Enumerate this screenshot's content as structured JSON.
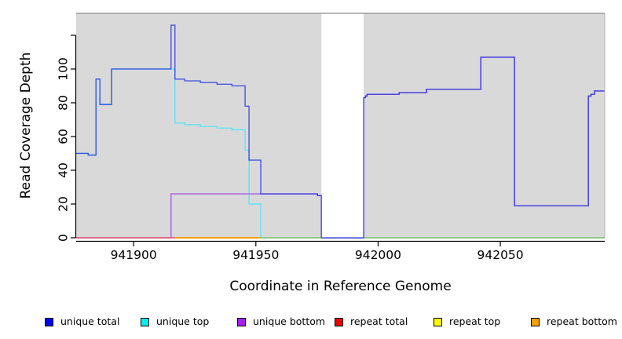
{
  "chart_data": {
    "type": "line",
    "subtype": "step",
    "xlabel": "Coordinate in Reference Genome",
    "ylabel": "Read Coverage Depth",
    "xlim": [
      941876.5,
      942092.7
    ],
    "ylim": [
      0,
      133
    ],
    "x_ticks": [
      941900,
      941950,
      942000,
      942050
    ],
    "x_tick_labels": [
      "941900",
      "941950",
      "942000",
      "942050"
    ],
    "y_ticks": [
      0,
      20,
      40,
      60,
      80,
      100,
      120
    ],
    "y_tick_labels": [
      "0",
      "20",
      "40",
      "60",
      "80",
      "100",
      ""
    ],
    "grid": "off",
    "plot_bg_color": "#d9d9d9",
    "gap_region": {
      "start": 941976.8,
      "end": 941994.1,
      "color": "#ffffff"
    },
    "series": [
      {
        "name": "repeat total",
        "color": "#ee2222",
        "opacity": 1,
        "points": [
          [
            941876.5,
            0
          ],
          [
            942092.7,
            0
          ]
        ]
      },
      {
        "name": "repeat top",
        "color": "#f0f000",
        "opacity": 1,
        "points": [
          [
            941876.5,
            0
          ],
          [
            942092.7,
            0
          ]
        ]
      },
      {
        "name": "repeat bottom",
        "color": "#ff9d00",
        "opacity": 1,
        "points": [
          [
            941876.5,
            0
          ],
          [
            942092.7,
            0
          ]
        ]
      },
      {
        "name": "unique top",
        "color": "#63e3f2",
        "opacity": 1,
        "points": [
          [
            941876.5,
            50
          ],
          [
            941881.4,
            50
          ],
          [
            941881.4,
            49
          ],
          [
            941884.6,
            49
          ],
          [
            941884.6,
            94
          ],
          [
            941886.2,
            94
          ],
          [
            941886.2,
            79
          ],
          [
            941891,
            79
          ],
          [
            941891,
            100
          ],
          [
            941916.9,
            100
          ],
          [
            941916.9,
            68
          ],
          [
            941920.9,
            68
          ],
          [
            941920.9,
            67
          ],
          [
            941927.3,
            67
          ],
          [
            941927.3,
            66
          ],
          [
            941934.1,
            66
          ],
          [
            941934.1,
            65
          ],
          [
            941940.2,
            65
          ],
          [
            941940.2,
            64
          ],
          [
            941945.6,
            64
          ],
          [
            941945.6,
            52
          ],
          [
            941947.2,
            52
          ],
          [
            941947.2,
            20
          ],
          [
            941952,
            20
          ],
          [
            941952,
            0
          ],
          [
            942092.7,
            0
          ]
        ]
      },
      {
        "name": "unique bottom",
        "color": "#a95ae8",
        "opacity": 1,
        "points": [
          [
            941876.5,
            0
          ],
          [
            941915.3,
            0
          ],
          [
            941915.3,
            26
          ],
          [
            941975.2,
            26
          ],
          [
            941975.2,
            25
          ],
          [
            941976.8,
            25
          ],
          [
            941976.8,
            0
          ],
          [
            941994.1,
            0
          ],
          [
            941994.1,
            83
          ],
          [
            941994.8,
            83
          ],
          [
            941994.8,
            84
          ],
          [
            941995.5,
            84
          ],
          [
            941995.5,
            85
          ],
          [
            942008.6,
            85
          ],
          [
            942008.6,
            86
          ],
          [
            942019.8,
            86
          ],
          [
            942019.8,
            88
          ],
          [
            942042,
            88
          ],
          [
            942042,
            107
          ],
          [
            942055.8,
            107
          ],
          [
            942055.8,
            19
          ],
          [
            942086,
            19
          ],
          [
            942086,
            84
          ],
          [
            942087.1,
            84
          ],
          [
            942087.1,
            85
          ],
          [
            942088.5,
            85
          ],
          [
            942088.5,
            87
          ],
          [
            942092.7,
            87
          ]
        ]
      },
      {
        "name": "unique total",
        "color": "#2335dd",
        "opacity": 0.8,
        "points": [
          [
            941876.5,
            50
          ],
          [
            941881.4,
            50
          ],
          [
            941881.4,
            49
          ],
          [
            941884.6,
            49
          ],
          [
            941884.6,
            94
          ],
          [
            941886.2,
            94
          ],
          [
            941886.2,
            79
          ],
          [
            941891,
            79
          ],
          [
            941891,
            100
          ],
          [
            941915.3,
            100
          ],
          [
            941915.3,
            126
          ],
          [
            941916.9,
            126
          ],
          [
            941916.9,
            94
          ],
          [
            941920.9,
            94
          ],
          [
            941920.9,
            93
          ],
          [
            941927.3,
            93
          ],
          [
            941927.3,
            92
          ],
          [
            941934.1,
            92
          ],
          [
            941934.1,
            91
          ],
          [
            941940.2,
            91
          ],
          [
            941940.2,
            90
          ],
          [
            941945.6,
            90
          ],
          [
            941945.6,
            78
          ],
          [
            941947.2,
            78
          ],
          [
            941947.2,
            46
          ],
          [
            941952,
            46
          ],
          [
            941952,
            26
          ],
          [
            941975.2,
            26
          ],
          [
            941975.2,
            25
          ],
          [
            941976.8,
            25
          ],
          [
            941976.8,
            0
          ],
          [
            941994.1,
            0
          ],
          [
            941994.1,
            83
          ],
          [
            941994.8,
            83
          ],
          [
            941994.8,
            84
          ],
          [
            941995.5,
            84
          ],
          [
            941995.5,
            85
          ],
          [
            942008.6,
            85
          ],
          [
            942008.6,
            86
          ],
          [
            942019.8,
            86
          ],
          [
            942019.8,
            88
          ],
          [
            942042,
            88
          ],
          [
            942042,
            107
          ],
          [
            942055.8,
            107
          ],
          [
            942055.8,
            19
          ],
          [
            942086,
            19
          ],
          [
            942086,
            84
          ],
          [
            942087.1,
            84
          ],
          [
            942087.1,
            85
          ],
          [
            942088.5,
            85
          ],
          [
            942088.5,
            87
          ],
          [
            942092.7,
            87
          ]
        ]
      }
    ],
    "baseline_overlap_segments": [
      {
        "from": 941876.5,
        "to": 941917.0,
        "color": "#e0608a"
      },
      {
        "from": 941917.0,
        "to": 941952.0,
        "color": "#ff9d00"
      },
      {
        "from": 941952.0,
        "to": 941976.8,
        "color": "#82cc82"
      },
      {
        "from": 941994.1,
        "to": 942092.7,
        "color": "#82cc82"
      }
    ],
    "legend": [
      {
        "label": "unique total",
        "color": "#0000f0"
      },
      {
        "label": "unique top",
        "color": "#00efef"
      },
      {
        "label": "unique bottom",
        "color": "#a020f0"
      },
      {
        "label": "repeat total",
        "color": "#f00000"
      },
      {
        "label": "repeat top",
        "color": "#fafa00"
      },
      {
        "label": "repeat bottom",
        "color": "#f9a000"
      }
    ],
    "colors": {
      "axis": "#000000",
      "border_top": "#8c8c8c",
      "border_right": "#b5b5b5",
      "figure_bg": "#ffffff"
    }
  }
}
